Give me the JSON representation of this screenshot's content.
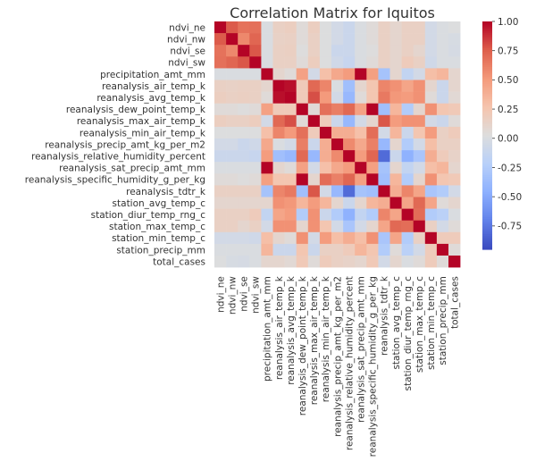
{
  "chart_data": {
    "type": "heatmap",
    "title": "Correlation Matrix for Iquitos",
    "variables": [
      "ndvi_ne",
      "ndvi_nw",
      "ndvi_se",
      "ndvi_sw",
      "precipitation_amt_mm",
      "reanalysis_air_temp_k",
      "reanalysis_avg_temp_k",
      "reanalysis_dew_point_temp_k",
      "reanalysis_max_air_temp_k",
      "reanalysis_min_air_temp_k",
      "reanalysis_precip_amt_kg_per_m2",
      "reanalysis_relative_humidity_percent",
      "reanalysis_sat_precip_amt_mm",
      "reanalysis_specific_humidity_g_per_kg",
      "reanalysis_tdtr_k",
      "station_avg_temp_c",
      "station_diur_temp_rng_c",
      "station_max_temp_c",
      "station_min_temp_c",
      "station_precip_mm",
      "total_cases"
    ],
    "matrix": [
      [
        1.0,
        0.77,
        0.68,
        0.69,
        0.0,
        0.15,
        0.17,
        0.05,
        0.17,
        0.02,
        -0.05,
        -0.1,
        0.0,
        0.05,
        0.15,
        0.1,
        0.15,
        0.15,
        -0.05,
        0.0,
        0.02
      ],
      [
        0.77,
        1.0,
        0.59,
        0.73,
        0.0,
        0.14,
        0.15,
        0.05,
        0.15,
        0.02,
        -0.05,
        -0.1,
        0.0,
        0.05,
        0.15,
        0.1,
        0.15,
        0.15,
        -0.05,
        0.0,
        -0.02
      ],
      [
        0.68,
        0.59,
        1.0,
        0.78,
        0.0,
        0.15,
        0.16,
        0.03,
        0.15,
        0.02,
        -0.1,
        -0.1,
        0.0,
        0.03,
        0.15,
        0.1,
        0.15,
        0.1,
        -0.05,
        0.0,
        -0.03
      ],
      [
        0.69,
        0.73,
        0.78,
        1.0,
        0.0,
        0.15,
        0.15,
        0.05,
        0.18,
        0.02,
        -0.07,
        -0.12,
        0.0,
        0.05,
        0.15,
        0.1,
        0.2,
        0.15,
        -0.07,
        0.0,
        0.0
      ],
      [
        0.0,
        0.0,
        0.0,
        0.0,
        1.0,
        0.1,
        0.05,
        0.47,
        -0.05,
        0.29,
        0.43,
        0.5,
        1.0,
        0.48,
        -0.32,
        0.1,
        -0.15,
        -0.05,
        0.3,
        0.35,
        0.1
      ],
      [
        0.15,
        0.14,
        0.15,
        0.15,
        0.1,
        1.0,
        0.97,
        0.21,
        0.72,
        0.6,
        0.0,
        -0.35,
        0.1,
        0.25,
        0.6,
        0.55,
        0.45,
        0.55,
        0.1,
        -0.1,
        0.1
      ],
      [
        0.17,
        0.15,
        0.16,
        0.15,
        0.05,
        0.97,
        1.0,
        0.21,
        0.8,
        0.51,
        -0.05,
        -0.4,
        0.05,
        0.25,
        0.65,
        0.52,
        0.5,
        0.55,
        0.05,
        -0.1,
        0.07
      ],
      [
        0.05,
        0.05,
        0.03,
        0.05,
        0.47,
        0.21,
        0.21,
        1.0,
        0.06,
        0.69,
        0.63,
        0.72,
        0.47,
        1.0,
        -0.35,
        0.35,
        -0.25,
        0.1,
        0.55,
        0.25,
        0.22
      ],
      [
        0.17,
        0.15,
        0.15,
        0.18,
        -0.05,
        0.72,
        0.8,
        0.06,
        1.0,
        0.2,
        -0.1,
        -0.4,
        -0.05,
        0.1,
        0.78,
        0.5,
        0.55,
        0.55,
        -0.05,
        -0.1,
        0.05
      ],
      [
        0.02,
        0.02,
        0.02,
        0.02,
        0.29,
        0.6,
        0.51,
        0.69,
        0.2,
        1.0,
        0.4,
        0.4,
        0.29,
        0.7,
        -0.05,
        0.35,
        -0.1,
        0.25,
        0.5,
        0.15,
        0.2
      ],
      [
        -0.05,
        -0.05,
        -0.1,
        -0.07,
        0.43,
        0.0,
        -0.05,
        0.63,
        -0.1,
        0.4,
        1.0,
        0.58,
        0.43,
        0.62,
        -0.4,
        0.1,
        -0.25,
        -0.05,
        0.3,
        0.15,
        0.15
      ],
      [
        -0.1,
        -0.1,
        -0.1,
        -0.12,
        0.5,
        -0.35,
        -0.4,
        0.72,
        -0.4,
        0.4,
        0.58,
        1.0,
        0.5,
        0.73,
        -0.81,
        -0.1,
        -0.45,
        -0.3,
        0.4,
        0.2,
        0.13
      ],
      [
        0.0,
        0.0,
        0.0,
        0.0,
        1.0,
        0.1,
        0.05,
        0.47,
        -0.05,
        0.29,
        0.43,
        0.5,
        1.0,
        0.48,
        -0.32,
        0.1,
        -0.15,
        -0.05,
        0.3,
        0.35,
        0.1
      ],
      [
        0.05,
        0.05,
        0.03,
        0.05,
        0.48,
        0.25,
        0.25,
        1.0,
        0.1,
        0.7,
        0.62,
        0.73,
        0.48,
        1.0,
        -0.35,
        0.35,
        -0.25,
        0.1,
        0.55,
        0.25,
        0.22
      ],
      [
        0.15,
        0.15,
        0.15,
        0.15,
        -0.32,
        0.6,
        0.65,
        -0.35,
        0.78,
        -0.05,
        -0.4,
        -0.81,
        -0.32,
        -0.35,
        1.0,
        0.4,
        0.6,
        0.45,
        -0.3,
        -0.25,
        -0.05
      ],
      [
        0.1,
        0.1,
        0.1,
        0.1,
        0.1,
        0.55,
        0.52,
        0.35,
        0.5,
        0.35,
        0.1,
        -0.1,
        0.1,
        0.35,
        0.4,
        1.0,
        0.45,
        0.72,
        0.45,
        0.05,
        0.1
      ],
      [
        0.15,
        0.15,
        0.15,
        0.2,
        -0.15,
        0.45,
        0.5,
        -0.25,
        0.55,
        -0.1,
        -0.25,
        -0.45,
        -0.15,
        -0.25,
        0.6,
        0.45,
        1.0,
        0.7,
        -0.25,
        -0.2,
        0.0
      ],
      [
        0.15,
        0.15,
        0.1,
        0.15,
        -0.05,
        0.55,
        0.55,
        0.1,
        0.55,
        0.25,
        -0.05,
        -0.3,
        -0.05,
        0.1,
        0.45,
        0.72,
        0.7,
        1.0,
        0.15,
        -0.05,
        0.05
      ],
      [
        -0.05,
        -0.05,
        -0.05,
        -0.07,
        0.3,
        0.1,
        0.05,
        0.55,
        -0.05,
        0.5,
        0.3,
        0.4,
        0.3,
        0.55,
        -0.3,
        0.45,
        -0.25,
        0.15,
        1.0,
        0.2,
        0.2
      ],
      [
        0.0,
        0.0,
        0.0,
        0.0,
        0.35,
        -0.1,
        -0.1,
        0.25,
        -0.1,
        0.15,
        0.15,
        0.2,
        0.35,
        0.25,
        -0.25,
        0.05,
        -0.2,
        -0.05,
        0.2,
        1.0,
        0.05
      ],
      [
        0.02,
        -0.02,
        -0.03,
        0.0,
        0.1,
        0.1,
        0.07,
        0.22,
        0.05,
        0.2,
        0.15,
        0.13,
        0.1,
        0.22,
        -0.05,
        0.1,
        0.0,
        0.05,
        0.2,
        0.05,
        1.0
      ]
    ],
    "colorbar": {
      "vmin": -0.95,
      "vmax": 1.0,
      "ticks": [
        "1.00",
        "0.75",
        "0.50",
        "0.25",
        "0.00",
        "-0.25",
        "-0.50",
        "-0.75"
      ],
      "tick_values": [
        1.0,
        0.75,
        0.5,
        0.25,
        0.0,
        -0.25,
        -0.5,
        -0.75
      ]
    },
    "colormap": "coolwarm"
  }
}
